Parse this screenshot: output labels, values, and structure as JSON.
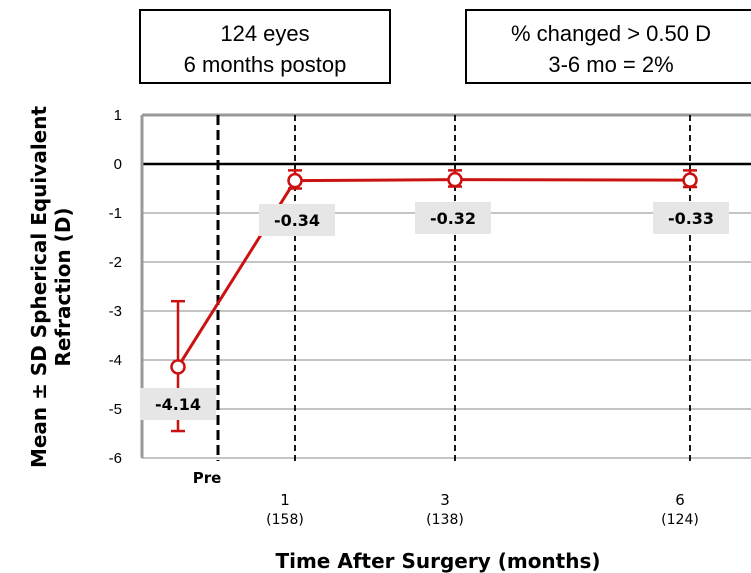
{
  "annotations": {
    "left_box": [
      "124 eyes",
      "6 months postop"
    ],
    "right_box": [
      "% changed > 0.50 D",
      "3-6 mo = 2%"
    ]
  },
  "colors": {
    "series": "#cc1111",
    "label_bg": "#e6e6e6",
    "grid": "#888888",
    "axis": "#000000"
  },
  "chart_data": {
    "type": "line",
    "xlabel": "Time After Surgery (months)",
    "ylabel": [
      "Mean ± SD Spherical Equivalent",
      "Refraction (D)"
    ],
    "ylim": [
      -6,
      1
    ],
    "yticks": [
      1,
      0,
      -1,
      -2,
      -3,
      -4,
      -5,
      -6
    ],
    "grid": true,
    "categories": [
      {
        "label": "Pre",
        "n": ""
      },
      {
        "label": "1",
        "n": "(158)"
      },
      {
        "label": "3",
        "n": "(138)"
      },
      {
        "label": "6",
        "n": "(124)"
      }
    ],
    "points": [
      {
        "x": "Pre",
        "mean": -4.14,
        "label": "-4.14",
        "err_low": -5.45,
        "err_high": -2.8
      },
      {
        "x": "1",
        "mean": -0.34,
        "label": "-0.34",
        "err_low": -0.5,
        "err_high": -0.13
      },
      {
        "x": "3",
        "mean": -0.32,
        "label": "-0.32",
        "err_low": -0.46,
        "err_high": -0.13
      },
      {
        "x": "6",
        "mean": -0.33,
        "label": "-0.33",
        "err_low": -0.47,
        "err_high": -0.13
      }
    ]
  }
}
